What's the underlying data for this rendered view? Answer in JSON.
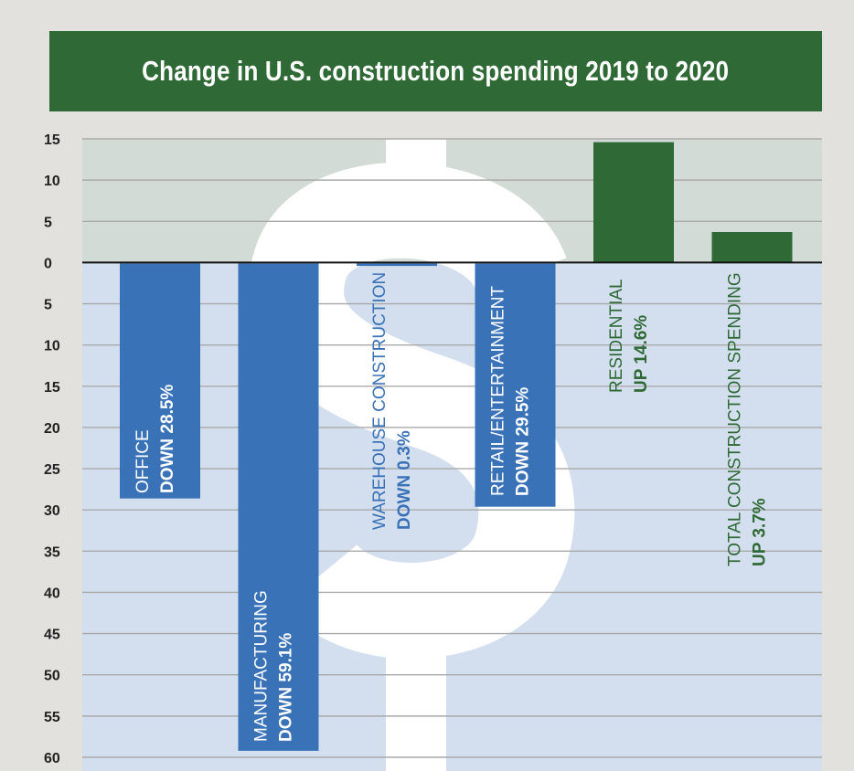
{
  "chart_data": {
    "type": "bar",
    "title": "Change in U.S. construction spending 2019 to 2020",
    "ylim": [
      -60,
      15
    ],
    "y_ticks": [
      15,
      10,
      5,
      0,
      -5,
      -10,
      -15,
      -20,
      -25,
      -30,
      -35,
      -40,
      -45,
      -50,
      -55,
      -60
    ],
    "y_tick_labels": [
      "15",
      "10",
      "5",
      "0",
      "5",
      "10",
      "15",
      "20",
      "25",
      "30",
      "35",
      "40",
      "45",
      "50",
      "55",
      "60"
    ],
    "grid": true,
    "categories": [
      "OFFICE",
      "MANUFACTURING",
      "WAREHOUSE CONSTRUCTION",
      "RETAIL/ENTERTAINMENT",
      "RESIDENTIAL",
      "TOTAL CONSTRUCTION SPENDING"
    ],
    "values": [
      -28.5,
      -59.1,
      -0.3,
      -29.5,
      14.6,
      3.7
    ],
    "data_labels": [
      "DOWN 28.5%",
      "DOWN 59.1%",
      "DOWN 0.3%",
      "DOWN 29.5%",
      "UP 14.6%",
      "UP 3.7%"
    ]
  },
  "colors": {
    "title_bg": "#2f6a36",
    "positive_bar": "#2f6a36",
    "negative_bar": "#3a72b8",
    "positive_region": "#d3dbd6",
    "negative_region": "#d3dfee",
    "background": "#e2e1de",
    "watermark": "dollar-sign"
  }
}
